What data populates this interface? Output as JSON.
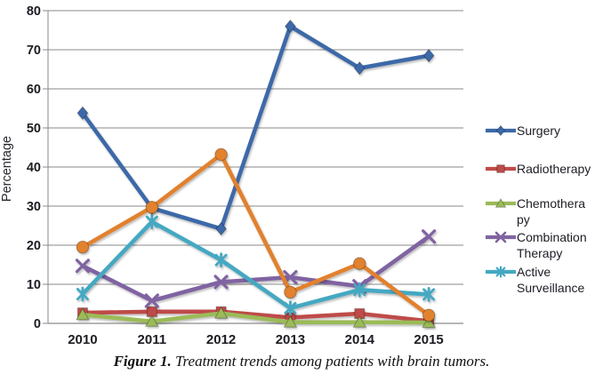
{
  "figure": {
    "caption_bold": "Figure 1.",
    "caption_rest": " Treatment trends among patients with brain tumors."
  },
  "chart_data": {
    "type": "line",
    "title": "",
    "xlabel": "",
    "ylabel": "Percentage",
    "ylim": [
      0,
      80
    ],
    "yticks": [
      0,
      10,
      20,
      30,
      40,
      50,
      60,
      70,
      80
    ],
    "grid": "horizontal",
    "legend_position": "right",
    "categories": [
      "2010",
      "2011",
      "2012",
      "2013",
      "2014",
      "2015"
    ],
    "series": [
      {
        "name": "Surgery",
        "marker": "diamond",
        "color": "#3C69A8",
        "values": [
          53.8,
          29.5,
          24.2,
          76.0,
          65.3,
          68.5
        ]
      },
      {
        "name": "Radiotherapy",
        "marker": "square",
        "color": "#BE4B48",
        "values": [
          2.7,
          3.0,
          3.0,
          1.5,
          2.5,
          0.6
        ]
      },
      {
        "name": "Chemotherapy",
        "marker": "triangle",
        "color": "#9BBB59",
        "values": [
          2.2,
          0.5,
          2.6,
          0.3,
          0.3,
          0.2
        ]
      },
      {
        "name": "Combination Therapy",
        "marker": "x",
        "color": "#8064A2",
        "values": [
          14.7,
          5.8,
          10.6,
          11.8,
          9.5,
          22.2
        ]
      },
      {
        "name": "Active Surveillance",
        "marker": "asterisk",
        "color": "#44A8C2",
        "values": [
          7.5,
          26.0,
          16.2,
          3.9,
          8.6,
          7.4
        ]
      },
      {
        "name": "",
        "marker": "circle",
        "color": "#E2812F",
        "values": [
          19.5,
          29.7,
          43.2,
          8.0,
          15.3,
          2.1
        ]
      }
    ]
  }
}
